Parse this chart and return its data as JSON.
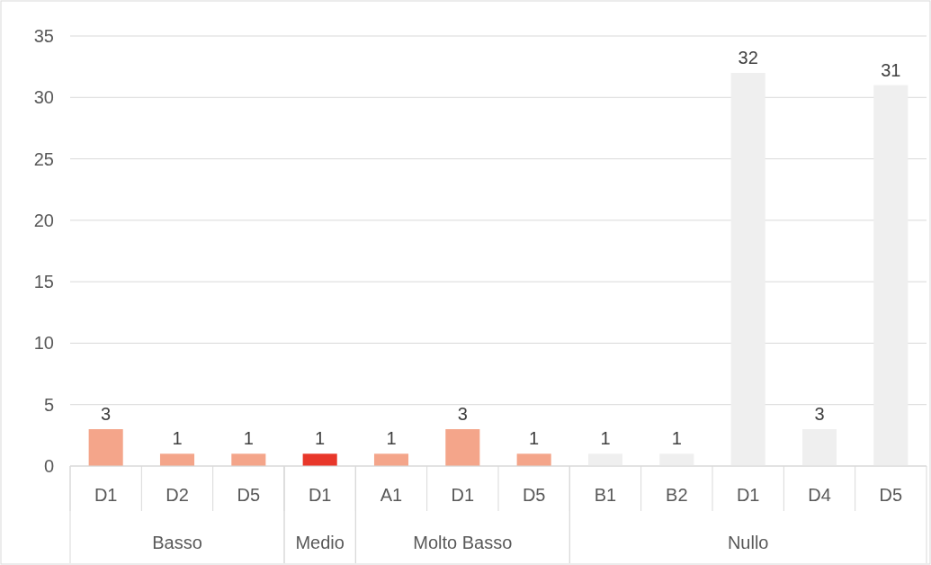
{
  "chart_data": {
    "type": "bar",
    "categories": [
      "D1",
      "D2",
      "D5",
      "D1",
      "A1",
      "D1",
      "D5",
      "B1",
      "B2",
      "D1",
      "D4",
      "D5"
    ],
    "values": [
      3,
      1,
      1,
      1,
      1,
      3,
      1,
      1,
      1,
      32,
      3,
      31
    ],
    "colors": [
      "#f4a58a",
      "#f4a58a",
      "#f4a58a",
      "#e8372a",
      "#f4a58a",
      "#f4a58a",
      "#f4a58a",
      "#efefef",
      "#efefef",
      "#efefef",
      "#efefef",
      "#efefef"
    ],
    "annotations": [
      "Basso",
      "Medio",
      "Molto Basso",
      "Nullo"
    ],
    "ylim": [
      0,
      35
    ],
    "yticks": [
      0,
      5,
      10,
      15,
      20,
      25,
      30,
      35
    ],
    "grid": "y",
    "data_labels": true
  }
}
